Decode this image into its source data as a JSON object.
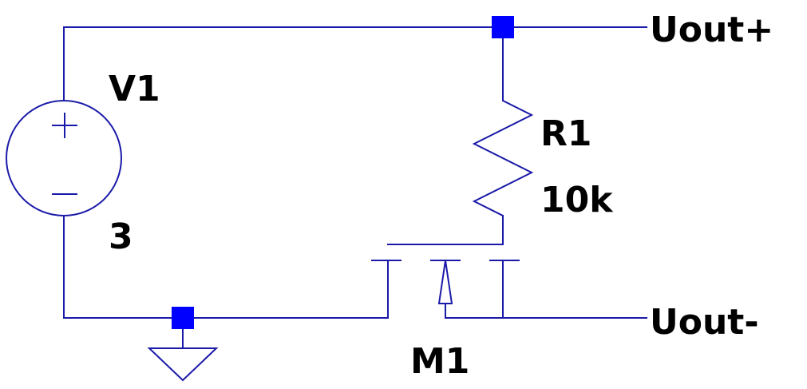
{
  "colors": {
    "wire": "#1a1aa8",
    "junction": "#0000ff",
    "text": "#000000",
    "background": "#ffffff"
  },
  "components": {
    "voltage_source": {
      "ref": "V1",
      "value": "3"
    },
    "resistor": {
      "ref": "R1",
      "value": "10k"
    },
    "mosfet": {
      "ref": "M1"
    }
  },
  "nets": {
    "out_plus": "Uout+",
    "out_minus": "Uout-"
  }
}
